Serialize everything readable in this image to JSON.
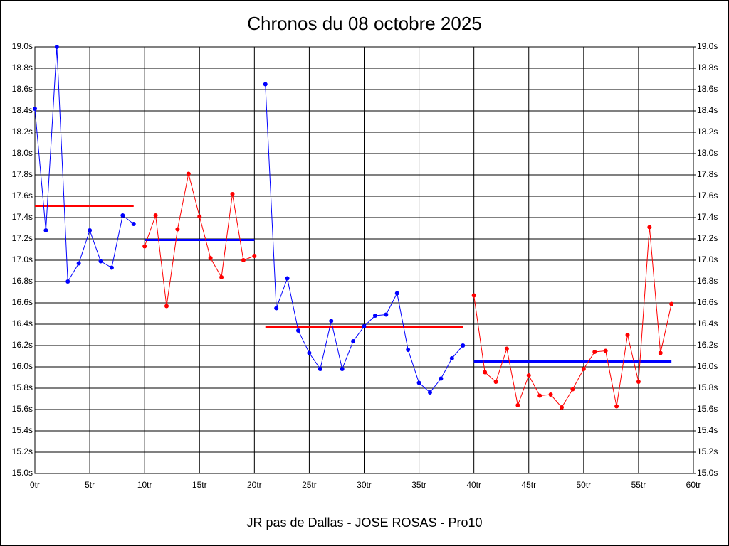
{
  "chart_data": {
    "type": "line",
    "title": "Chronos du 08 octobre 2025",
    "xlabel": "JR pas de Dallas - JOSE ROSAS - Pro10",
    "xlim": [
      0,
      60
    ],
    "xticks": [
      {
        "value": 0,
        "label": "0tr"
      },
      {
        "value": 5,
        "label": "5tr"
      },
      {
        "value": 10,
        "label": "10tr"
      },
      {
        "value": 15,
        "label": "15tr"
      },
      {
        "value": 20,
        "label": "20tr"
      },
      {
        "value": 25,
        "label": "25tr"
      },
      {
        "value": 30,
        "label": "30tr"
      },
      {
        "value": 35,
        "label": "35tr"
      },
      {
        "value": 40,
        "label": "40tr"
      },
      {
        "value": 45,
        "label": "45tr"
      },
      {
        "value": 50,
        "label": "50tr"
      },
      {
        "value": 55,
        "label": "55tr"
      },
      {
        "value": 60,
        "label": "60tr"
      }
    ],
    "ylim": [
      15.0,
      19.0
    ],
    "yticks": [
      {
        "value": 15.0,
        "label": "15.0s"
      },
      {
        "value": 15.2,
        "label": "15.2s"
      },
      {
        "value": 15.4,
        "label": "15.4s"
      },
      {
        "value": 15.6,
        "label": "15.6s"
      },
      {
        "value": 15.8,
        "label": "15.8s"
      },
      {
        "value": 16.0,
        "label": "16.0s"
      },
      {
        "value": 16.2,
        "label": "16.2s"
      },
      {
        "value": 16.4,
        "label": "16.4s"
      },
      {
        "value": 16.6,
        "label": "16.6s"
      },
      {
        "value": 16.8,
        "label": "16.8s"
      },
      {
        "value": 17.0,
        "label": "17.0s"
      },
      {
        "value": 17.2,
        "label": "17.2s"
      },
      {
        "value": 17.4,
        "label": "17.4s"
      },
      {
        "value": 17.6,
        "label": "17.6s"
      },
      {
        "value": 17.8,
        "label": "17.8s"
      },
      {
        "value": 18.0,
        "label": "18.0s"
      },
      {
        "value": 18.2,
        "label": "18.2s"
      },
      {
        "value": 18.4,
        "label": "18.4s"
      },
      {
        "value": 18.6,
        "label": "18.6s"
      },
      {
        "value": 18.8,
        "label": "18.8s"
      },
      {
        "value": 19.0,
        "label": "19.0s"
      }
    ],
    "y2lim": [
      15.0,
      19.0
    ],
    "y2ticks": [
      {
        "value": 15.0,
        "label": "15.0s"
      },
      {
        "value": 15.2,
        "label": "15.2s"
      },
      {
        "value": 15.4,
        "label": "15.4s"
      },
      {
        "value": 15.6,
        "label": "15.6s"
      },
      {
        "value": 15.8,
        "label": "15.8s"
      },
      {
        "value": 16.0,
        "label": "16.0s"
      },
      {
        "value": 16.2,
        "label": "16.2s"
      },
      {
        "value": 16.4,
        "label": "16.4s"
      },
      {
        "value": 16.6,
        "label": "16.6s"
      },
      {
        "value": 16.8,
        "label": "16.8s"
      },
      {
        "value": 17.0,
        "label": "17.0s"
      },
      {
        "value": 17.2,
        "label": "17.2s"
      },
      {
        "value": 17.4,
        "label": "17.4s"
      },
      {
        "value": 17.6,
        "label": "17.6s"
      },
      {
        "value": 17.8,
        "label": "17.8s"
      },
      {
        "value": 18.0,
        "label": "18.0s"
      },
      {
        "value": 18.2,
        "label": "18.2s"
      },
      {
        "value": 18.4,
        "label": "18.4s"
      },
      {
        "value": 18.6,
        "label": "18.6s"
      },
      {
        "value": 18.8,
        "label": "18.8s"
      },
      {
        "value": 19.0,
        "label": "19.0s"
      }
    ],
    "grid": true,
    "series": [
      {
        "color": "#0000ff",
        "x": [
          0,
          1,
          2,
          3,
          4,
          5,
          6,
          7,
          8,
          9
        ],
        "values": [
          18.42,
          17.28,
          19.0,
          16.8,
          16.97,
          17.28,
          16.99,
          16.93,
          17.42,
          17.34
        ]
      },
      {
        "color": "#ff0000",
        "x": [
          10,
          11,
          12,
          13,
          14,
          15,
          16,
          17,
          18,
          19,
          20
        ],
        "values": [
          17.13,
          17.42,
          16.57,
          17.29,
          17.81,
          17.41,
          17.02,
          16.84,
          17.62,
          17.0,
          17.04
        ]
      },
      {
        "color": "#0000ff",
        "x": [
          21,
          22,
          23,
          24,
          25,
          26,
          27,
          28,
          29,
          30,
          31,
          32,
          33,
          34,
          35,
          36,
          37,
          38,
          39
        ],
        "values": [
          18.65,
          16.55,
          16.83,
          16.34,
          16.13,
          15.98,
          16.43,
          15.98,
          16.24,
          16.38,
          16.48,
          16.49,
          16.69,
          16.16,
          15.85,
          15.76,
          15.89,
          16.08,
          16.2
        ]
      },
      {
        "color": "#ff0000",
        "x": [
          40,
          41,
          42,
          43,
          44,
          45,
          46,
          47,
          48,
          49,
          50,
          51,
          52,
          53,
          54,
          55,
          56,
          57,
          58
        ],
        "values": [
          16.67,
          15.95,
          15.86,
          16.17,
          15.64,
          15.92,
          15.73,
          15.74,
          15.62,
          15.79,
          15.98,
          16.14,
          16.15,
          15.63,
          16.3,
          15.86,
          17.31,
          16.13,
          16.59
        ]
      }
    ],
    "averages": [
      {
        "color": "#ff0000",
        "x": [
          0,
          9
        ],
        "value": 17.51
      },
      {
        "color": "#0000ff",
        "x": [
          10,
          20
        ],
        "value": 17.19
      },
      {
        "color": "#ff0000",
        "x": [
          21,
          39
        ],
        "value": 16.37
      },
      {
        "color": "#0000ff",
        "x": [
          40,
          58
        ],
        "value": 16.05
      }
    ]
  }
}
